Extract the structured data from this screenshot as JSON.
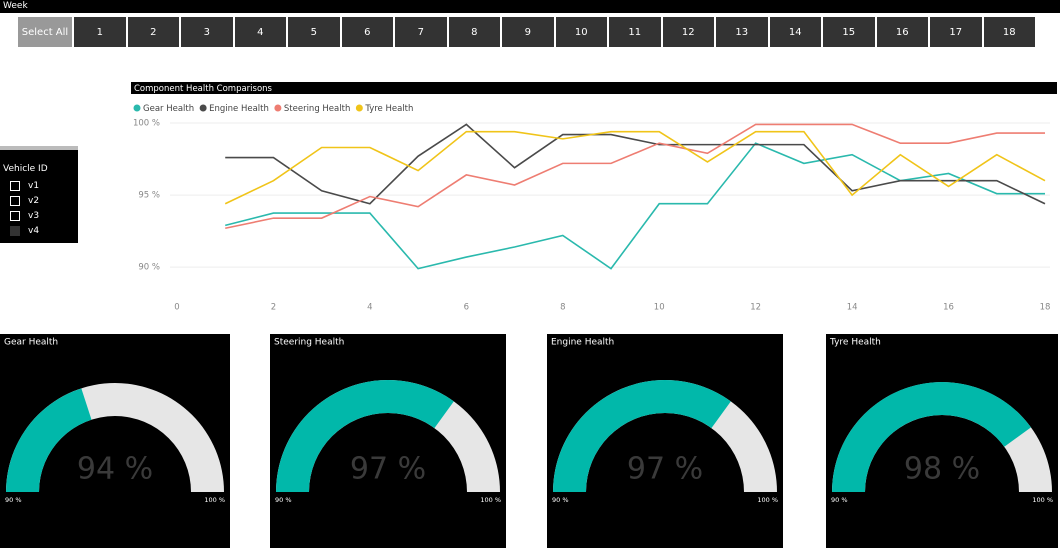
{
  "week_slicer": {
    "title": "Week",
    "items": [
      "Select All",
      "1",
      "2",
      "3",
      "4",
      "5",
      "6",
      "7",
      "8",
      "9",
      "10",
      "11",
      "12",
      "13",
      "14",
      "15",
      "16",
      "17",
      "18"
    ]
  },
  "vehicle_slicer": {
    "title": "Vehicle ID",
    "items": [
      "v1",
      "v2",
      "v3",
      "v4"
    ]
  },
  "chart_data": [
    {
      "type": "line",
      "title": "Component Health Comparisons",
      "legend": "top-left",
      "grid": true,
      "x": [
        1,
        2,
        3,
        4,
        5,
        6,
        7,
        8,
        9,
        10,
        11,
        12,
        13,
        14,
        15,
        16,
        17,
        18
      ],
      "xlim": [
        0,
        18
      ],
      "xticks": [
        0,
        2,
        4,
        6,
        8,
        10,
        12,
        14,
        16,
        18
      ],
      "ylim": [
        88,
        100
      ],
      "yticks": [
        {
          "value": 90,
          "label": "90 %"
        },
        {
          "value": 95,
          "label": "95 %"
        },
        {
          "value": 100,
          "label": "100 %"
        }
      ],
      "series": [
        {
          "name": "Gear Health",
          "color": "#2ab9ad",
          "values": [
            92.9,
            93.75,
            93.75,
            93.75,
            89.9,
            90.7,
            91.4,
            92.2,
            89.9,
            94.4,
            94.4,
            98.6,
            97.2,
            97.8,
            96.0,
            96.5,
            95.1,
            95.1
          ]
        },
        {
          "name": "Engine Health",
          "color": "#4a4a4a",
          "values": [
            97.6,
            97.6,
            95.3,
            94.4,
            97.7,
            99.9,
            96.9,
            99.2,
            99.2,
            98.5,
            98.5,
            98.5,
            98.5,
            95.3,
            96.0,
            96.0,
            96.0,
            94.4
          ]
        },
        {
          "name": "Steering Health",
          "color": "#ee7d72",
          "values": [
            92.7,
            93.4,
            93.4,
            94.9,
            94.2,
            96.4,
            95.7,
            97.2,
            97.2,
            98.6,
            97.9,
            99.9,
            99.9,
            99.9,
            98.6,
            98.6,
            99.3,
            99.3
          ]
        },
        {
          "name": "Tyre Health",
          "color": "#f0c419",
          "values": [
            94.4,
            96.0,
            98.3,
            98.3,
            96.7,
            99.4,
            99.4,
            98.9,
            99.4,
            99.4,
            97.3,
            99.4,
            99.4,
            95.0,
            97.8,
            95.6,
            97.8,
            96.0
          ]
        }
      ]
    },
    {
      "type": "gauge",
      "title": "Gear Health",
      "values": [
        94
      ],
      "value_labels": [
        "94 %"
      ],
      "color": "#01b8aa",
      "ylim": [
        90,
        100
      ],
      "yticks": [
        {
          "value": 90,
          "label": "90 %"
        },
        {
          "value": 100,
          "label": "100 %"
        }
      ]
    },
    {
      "type": "gauge",
      "title": "Steering Health",
      "values": [
        97
      ],
      "value_labels": [
        "97 %"
      ],
      "color": "#01b8aa",
      "ylim": [
        90,
        100
      ],
      "yticks": [
        {
          "value": 90,
          "label": "90 %"
        },
        {
          "value": 100,
          "label": "100 %"
        }
      ]
    },
    {
      "type": "gauge",
      "title": "Engine Health",
      "values": [
        97
      ],
      "value_labels": [
        "97 %"
      ],
      "color": "#01b8aa",
      "ylim": [
        90,
        100
      ],
      "yticks": [
        {
          "value": 90,
          "label": "90 %"
        },
        {
          "value": 100,
          "label": "100 %"
        }
      ]
    },
    {
      "type": "gauge",
      "title": "Tyre Health",
      "values": [
        98
      ],
      "value_labels": [
        "98 %"
      ],
      "color": "#01b8aa",
      "ylim": [
        90,
        100
      ],
      "yticks": [
        {
          "value": 90,
          "label": "90 %"
        },
        {
          "value": 100,
          "label": "100 %"
        }
      ]
    }
  ]
}
